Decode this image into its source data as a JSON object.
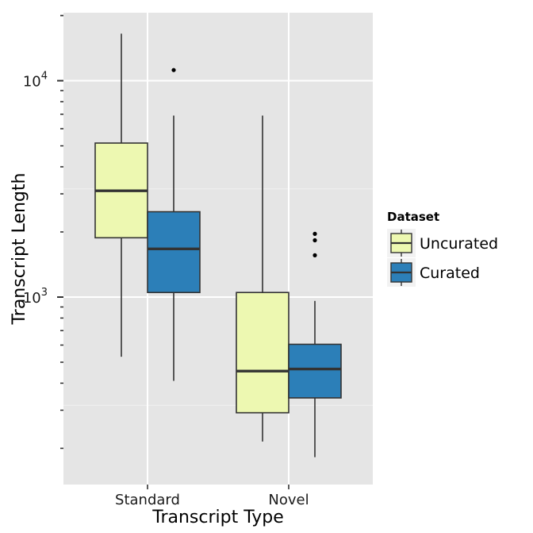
{
  "chart_data": {
    "type": "boxplot",
    "xlabel": "Transcript Type",
    "ylabel": "Transcript Length",
    "y_scale": "log10",
    "ylim": [
      150,
      20000
    ],
    "y_ticks": [
      {
        "value": 1000,
        "base": "10",
        "exp": "3"
      },
      {
        "value": 10000,
        "base": "10",
        "exp": "4"
      }
    ],
    "categories": [
      "Standard",
      "Novel"
    ],
    "legend": {
      "title": "Dataset",
      "position": "right",
      "entries": [
        "Uncurated",
        "Curated"
      ]
    },
    "colors": {
      "panel": "#e5e5e5",
      "grid_major": "#ffffff",
      "grid_minor": "#f2f2f2",
      "Uncurated": "#edf8b1",
      "Curated": "#2c7fb8",
      "outline": "#333333"
    },
    "series": [
      {
        "name": "Uncurated",
        "boxes": [
          {
            "category": "Standard",
            "min": 530,
            "q1": 1880,
            "median": 3100,
            "q3": 5150,
            "max": 16500,
            "outliers": []
          },
          {
            "category": "Novel",
            "min": 215,
            "q1": 292,
            "median": 455,
            "q3": 1050,
            "max": 6900,
            "outliers": []
          }
        ]
      },
      {
        "name": "Curated",
        "boxes": [
          {
            "category": "Standard",
            "min": 410,
            "q1": 1050,
            "median": 1670,
            "q3": 2480,
            "max": 6900,
            "outliers": [
              11200
            ]
          },
          {
            "category": "Novel",
            "min": 182,
            "q1": 342,
            "median": 465,
            "q3": 605,
            "max": 960,
            "outliers": [
              1560,
              1830,
              1960
            ]
          }
        ]
      }
    ]
  }
}
